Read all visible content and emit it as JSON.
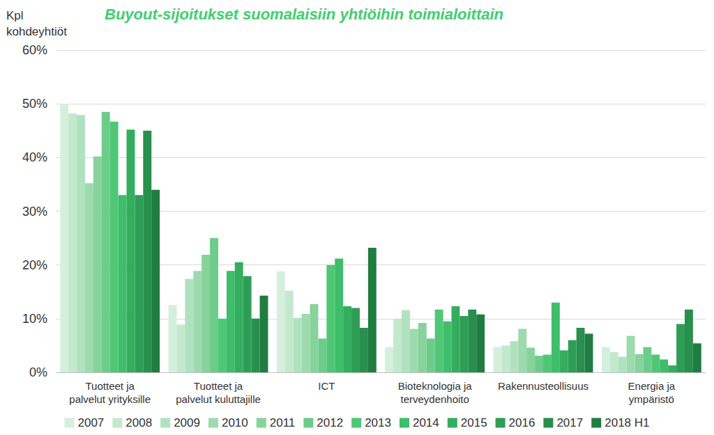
{
  "chart_data": {
    "type": "bar",
    "title": "Buyout-sijoitukset suomalaisiin yhtiöihin toimialoittain",
    "ylabel": "Kpl\nkohdeyhtiöt",
    "categories": [
      "Tuotteet ja\npalvelut yrityksille",
      "Tuotteet ja\npalvelut kuluttajille",
      "ICT",
      "Bioteknologia ja\nterveydenhoito",
      "Rakennusteollisuus",
      "Energia ja\nympäristö"
    ],
    "series": [
      {
        "name": "2007",
        "color": "#d4efdc",
        "values": [
          50,
          12.5,
          18.8,
          4.7,
          4.7,
          4.7
        ]
      },
      {
        "name": "2008",
        "color": "#c3e9cd",
        "values": [
          48.2,
          8.9,
          15.2,
          10,
          5,
          3.8
        ]
      },
      {
        "name": "2009",
        "color": "#b1e2bf",
        "values": [
          47.9,
          17.4,
          10.1,
          11.6,
          5.8,
          2.9
        ]
      },
      {
        "name": "2010",
        "color": "#9ddaae",
        "values": [
          35.2,
          18.9,
          10.9,
          8.1,
          8.1,
          6.8
        ]
      },
      {
        "name": "2011",
        "color": "#86d39c",
        "values": [
          40.2,
          21.9,
          12.7,
          9.2,
          4.6,
          3.4
        ]
      },
      {
        "name": "2012",
        "color": "#6dcc8a",
        "values": [
          48.5,
          25,
          6.3,
          6.3,
          3.1,
          4.7
        ]
      },
      {
        "name": "2013",
        "color": "#4fc777",
        "values": [
          46.7,
          10,
          20,
          11.7,
          3.3,
          3.3
        ]
      },
      {
        "name": "2014",
        "color": "#3ebd6a",
        "values": [
          33,
          18.9,
          21.2,
          9.5,
          13,
          2.4
        ]
      },
      {
        "name": "2015",
        "color": "#35ad5f",
        "values": [
          45.2,
          20.5,
          12.3,
          12.3,
          4.1,
          1.3
        ]
      },
      {
        "name": "2016",
        "color": "#2e9e56",
        "values": [
          33,
          17.9,
          12,
          10.5,
          6,
          9
        ]
      },
      {
        "name": "2017",
        "color": "#288f4d",
        "values": [
          45,
          10,
          8.3,
          11.7,
          8.3,
          11.7
        ]
      },
      {
        "name": "2018 H1",
        "color": "#1f7d42",
        "values": [
          34,
          14.3,
          23.2,
          10.8,
          7.2,
          5.4
        ]
      }
    ],
    "ylim": [
      0,
      60
    ],
    "yticks": [
      {
        "value": 0,
        "label": "0%"
      },
      {
        "value": 10,
        "label": "10%"
      },
      {
        "value": 20,
        "label": "20%"
      },
      {
        "value": 30,
        "label": "30%"
      },
      {
        "value": 40,
        "label": "40%"
      },
      {
        "value": 50,
        "label": "50%"
      },
      {
        "value": 60,
        "label": "60%"
      }
    ],
    "grid": true,
    "legend": "bottom"
  }
}
